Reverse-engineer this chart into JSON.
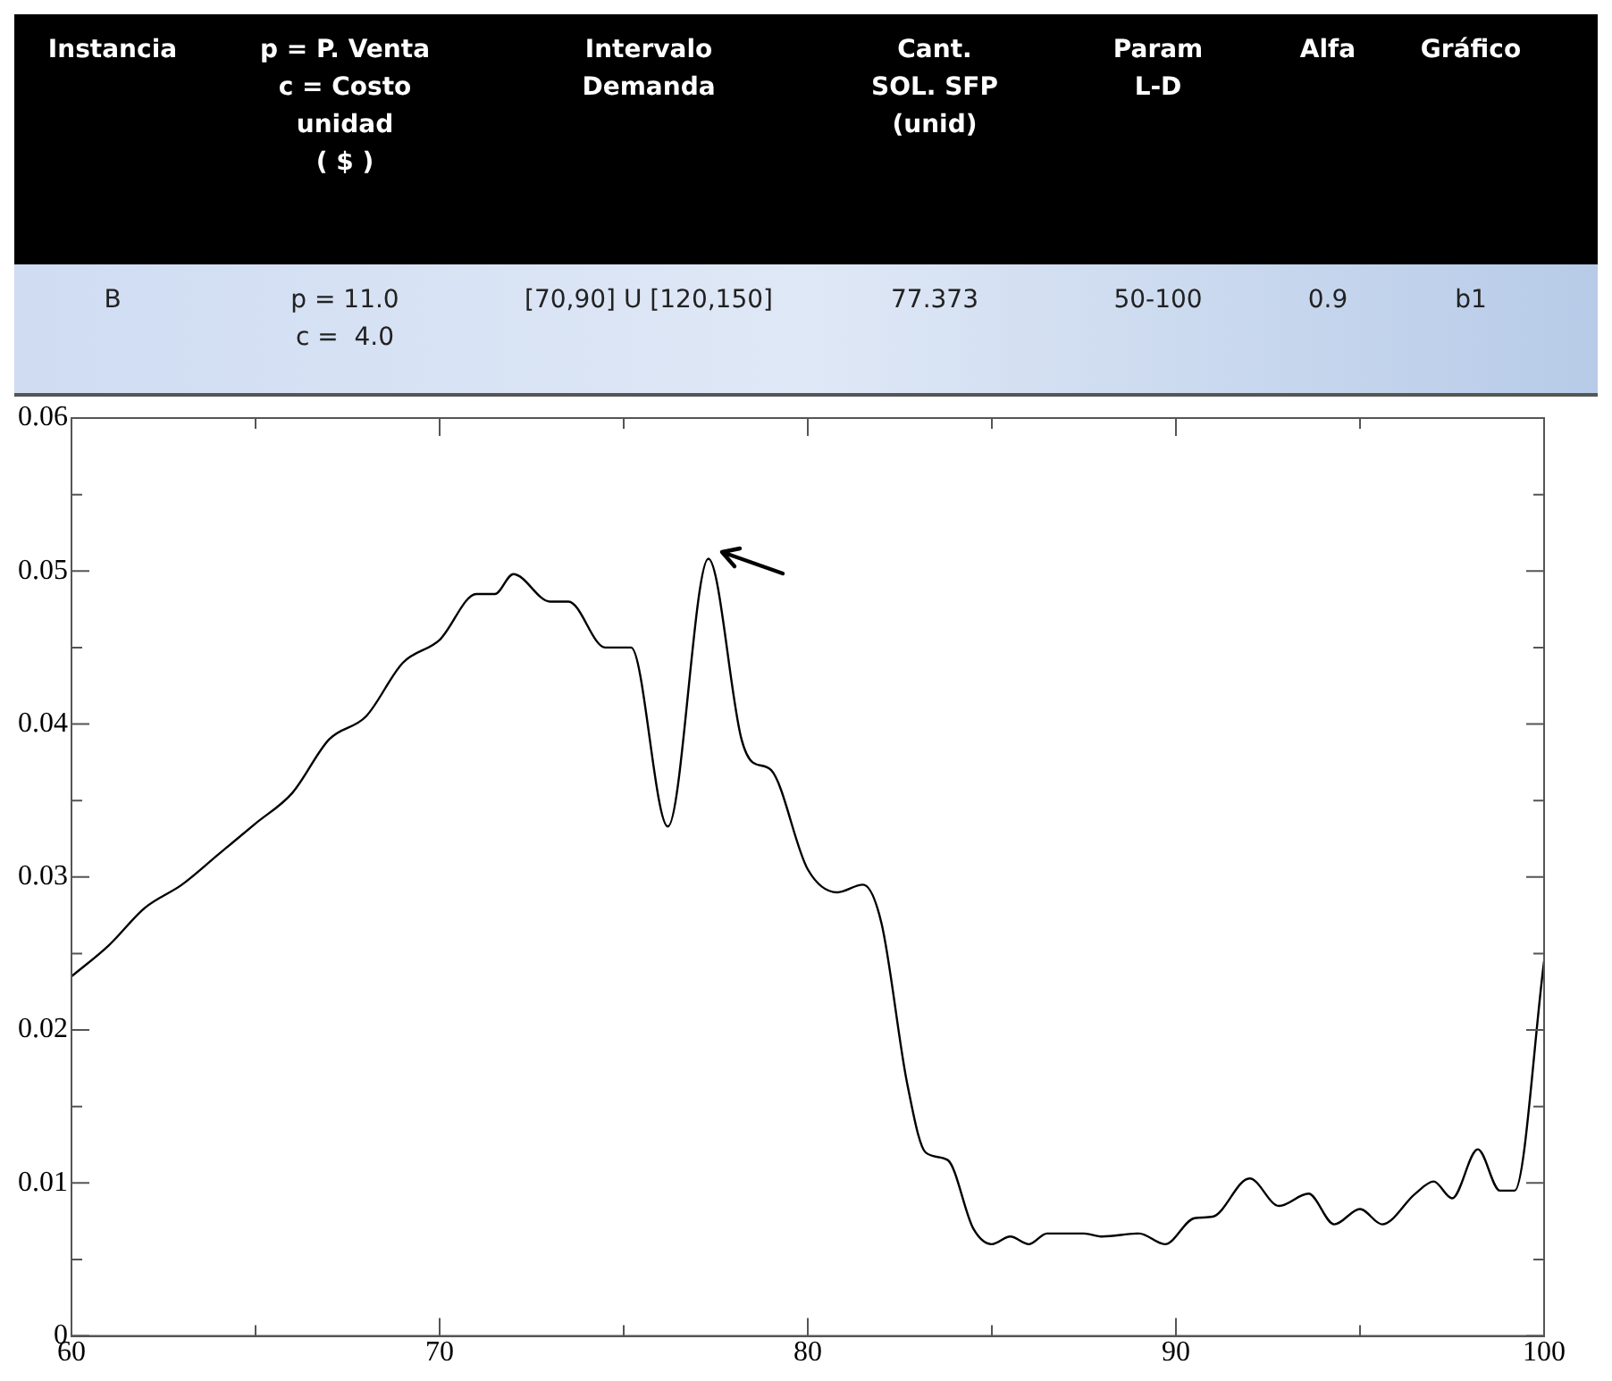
{
  "chart_data": {
    "type": "line",
    "annotations": [
      "Instancia",
      "p = P. Venta\nc = Costo\nunidad\n( $ )",
      "Intervalo\nDemanda",
      "Cant.\nSOL. SFP\n(unid)",
      "Param\nL-D",
      "Alfa",
      "Gráfico",
      "B",
      "p = 11.0\nc =  4.0",
      "[70,90] U [120,150]",
      "77.373",
      "50-100",
      "0.9",
      "b1"
    ],
    "x": [
      60,
      61,
      62,
      63,
      64,
      65,
      66,
      67,
      68,
      69,
      70,
      71,
      71.5,
      72,
      73,
      73.5,
      74.5,
      75.2,
      76.2,
      77.3,
      78.2,
      78.5,
      79,
      80,
      80.8,
      81.5,
      82,
      82.7,
      83.2,
      83.8,
      84.5,
      85,
      85.5,
      86,
      86.5,
      87.5,
      88,
      89,
      89.7,
      90.5,
      91,
      92,
      92.8,
      93.6,
      94.3,
      95,
      95.6,
      96.5,
      97,
      97.5,
      98.2,
      98.8,
      99.2,
      100
    ],
    "series": [
      {
        "color": "#000000",
        "values": [
          0.0235,
          0.0255,
          0.028,
          0.0295,
          0.0315,
          0.0335,
          0.0355,
          0.039,
          0.0405,
          0.044,
          0.0455,
          0.0485,
          0.0485,
          0.0498,
          0.048,
          0.048,
          0.045,
          0.045,
          0.0333,
          0.0508,
          0.039,
          0.0375,
          0.037,
          0.0305,
          0.029,
          0.0295,
          0.027,
          0.0165,
          0.012,
          0.0115,
          0.007,
          0.006,
          0.0065,
          0.006,
          0.0067,
          0.0067,
          0.0065,
          0.0067,
          0.006,
          0.0077,
          0.0078,
          0.0103,
          0.0085,
          0.0093,
          0.0073,
          0.0083,
          0.0073,
          0.0093,
          0.0101,
          0.009,
          0.0122,
          0.0095,
          0.0095,
          0.0245
        ]
      }
    ],
    "xlim": [
      60,
      100
    ],
    "xticks": [
      60,
      {
        "value": 65,
        "label": null
      },
      70,
      {
        "value": 75,
        "label": null
      },
      80,
      {
        "value": 85,
        "label": null
      },
      90,
      {
        "value": 95,
        "label": null
      },
      100
    ],
    "ylim": [
      0,
      0.06
    ],
    "yticks": [
      0,
      {
        "value": 0.005,
        "label": null
      },
      0.01,
      {
        "value": 0.015,
        "label": null
      },
      0.02,
      {
        "value": 0.025,
        "label": null
      },
      0.03,
      {
        "value": 0.035,
        "label": null
      },
      0.04,
      {
        "value": 0.045,
        "label": null
      },
      0.05,
      {
        "value": 0.055,
        "label": null
      },
      0.06
    ],
    "grid": false,
    "legend": false,
    "marker": "none",
    "line_style": "solid"
  }
}
